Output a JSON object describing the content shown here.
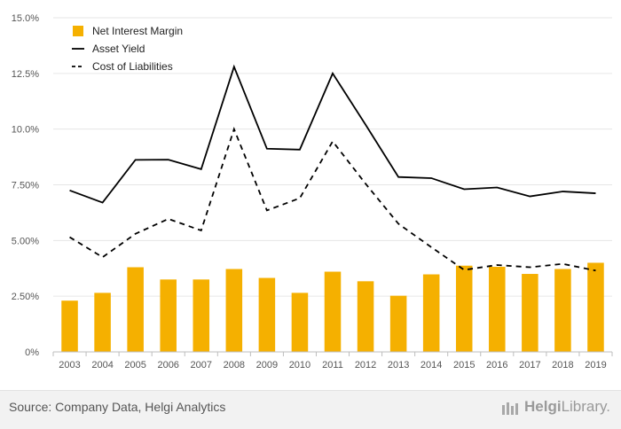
{
  "chart_data": {
    "type": "bar",
    "categories": [
      "2003",
      "2004",
      "2005",
      "2006",
      "2007",
      "2008",
      "2009",
      "2010",
      "2011",
      "2012",
      "2013",
      "2014",
      "2015",
      "2016",
      "2017",
      "2018",
      "2019"
    ],
    "series": [
      {
        "name": "Net Interest Margin",
        "type": "bar",
        "color": "#f5b000",
        "values": [
          2.3,
          2.65,
          3.8,
          3.25,
          3.25,
          3.72,
          3.32,
          2.65,
          3.6,
          3.17,
          2.52,
          3.48,
          3.87,
          3.82,
          3.5,
          3.72,
          4.0
        ]
      },
      {
        "name": "Asset Yield",
        "type": "line",
        "dash": "solid",
        "color": "#000000",
        "values": [
          7.25,
          6.7,
          8.62,
          8.63,
          8.2,
          12.8,
          9.12,
          9.08,
          12.5,
          10.2,
          7.85,
          7.8,
          7.3,
          7.38,
          6.98,
          7.2,
          7.12
        ]
      },
      {
        "name": "Cost of Liabilities",
        "type": "line",
        "dash": "dashed",
        "color": "#000000",
        "values": [
          5.15,
          4.25,
          5.3,
          5.97,
          5.45,
          10.0,
          6.35,
          6.9,
          9.45,
          7.55,
          5.75,
          4.7,
          3.68,
          3.9,
          3.8,
          3.95,
          3.65
        ]
      }
    ],
    "ylim": [
      0,
      15
    ],
    "yticks": [
      0,
      2.5,
      5.0,
      7.5,
      10.0,
      12.5,
      15.0
    ],
    "ytick_labels": [
      "0%",
      "2.50%",
      "5.00%",
      "7.50%",
      "10.0%",
      "12.5%",
      "15.0%"
    ],
    "grid": true,
    "legend": "top-left",
    "title": "",
    "xlabel": "",
    "ylabel": ""
  },
  "footer": {
    "source": "Source: Company Data, Helgi Analytics",
    "brand_part1": "Helgi",
    "brand_part2": "Library."
  }
}
